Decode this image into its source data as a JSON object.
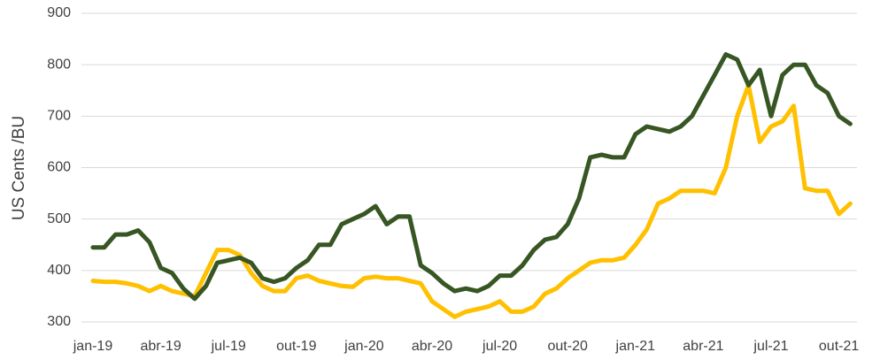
{
  "chart_data": {
    "type": "line",
    "y_label": "US Cents /BU",
    "categories": [
      "jan-19",
      null,
      null,
      null,
      null,
      null,
      "abr-19",
      null,
      null,
      null,
      null,
      null,
      "jul-19",
      null,
      null,
      null,
      null,
      null,
      "out-19",
      null,
      null,
      null,
      null,
      null,
      "jan-20",
      null,
      null,
      null,
      null,
      null,
      "abr-20",
      null,
      null,
      null,
      null,
      null,
      "jul-20",
      null,
      null,
      null,
      null,
      null,
      "out-20",
      null,
      null,
      null,
      null,
      null,
      "jan-21",
      null,
      null,
      null,
      null,
      null,
      "abr-21",
      null,
      null,
      null,
      null,
      null,
      "jul-21",
      null,
      null,
      null,
      null,
      null,
      "out-21",
      null
    ],
    "series": [
      {
        "color": "#375623",
        "values": [
          445,
          445,
          470,
          470,
          478,
          455,
          405,
          395,
          365,
          345,
          370,
          415,
          420,
          425,
          415,
          385,
          378,
          385,
          405,
          420,
          450,
          450,
          490,
          500,
          510,
          525,
          490,
          505,
          505,
          410,
          395,
          375,
          360,
          365,
          360,
          370,
          390,
          390,
          410,
          440,
          460,
          465,
          490,
          540,
          620,
          625,
          620,
          620,
          665,
          680,
          675,
          670,
          680,
          700,
          740,
          780,
          820,
          810,
          760,
          790,
          700,
          780,
          800,
          800,
          760,
          745,
          700,
          685
        ]
      },
      {
        "color": "#ffc000",
        "values": [
          380,
          378,
          378,
          375,
          370,
          360,
          370,
          360,
          355,
          350,
          395,
          440,
          440,
          430,
          395,
          370,
          360,
          360,
          385,
          390,
          380,
          375,
          370,
          368,
          385,
          388,
          385,
          385,
          380,
          375,
          340,
          325,
          310,
          320,
          325,
          330,
          340,
          320,
          320,
          330,
          355,
          365,
          385,
          400,
          415,
          420,
          420,
          425,
          450,
          480,
          530,
          540,
          555,
          555,
          555,
          550,
          600,
          700,
          760,
          650,
          680,
          690,
          720,
          560,
          555,
          555,
          510,
          530
        ]
      }
    ],
    "ylim": [
      300,
      900
    ],
    "yticks": [
      300,
      400,
      500,
      600,
      700,
      800,
      900
    ],
    "grid": true
  }
}
